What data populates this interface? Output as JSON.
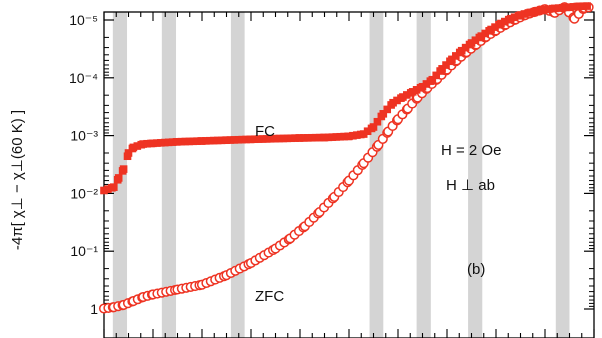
{
  "chart_data": {
    "type": "scatter",
    "panel_label": "(b)",
    "ylabel": "-4π[ χ⊥ − χ⊥(60 K) ]",
    "yscale": "log-inverted",
    "y_ticks": [
      {
        "value": 1e-05,
        "label": "10⁻⁵"
      },
      {
        "value": 0.0001,
        "label": "10⁻⁴"
      },
      {
        "value": 0.001,
        "label": "10⁻³"
      },
      {
        "value": 0.01,
        "label": "10⁻²"
      },
      {
        "value": 0.1,
        "label": "10⁻¹"
      },
      {
        "value": 1,
        "label": "1"
      }
    ],
    "x_range": [
      0,
      100
    ],
    "grid": false,
    "shaded_bands_x": [
      [
        1.8,
        4.7
      ],
      [
        11.8,
        14.7
      ],
      [
        25.9,
        28.7
      ],
      [
        54.2,
        57.0
      ],
      [
        63.8,
        66.7
      ],
      [
        74.3,
        77.2
      ],
      [
        92.2,
        95.0
      ]
    ],
    "annotations": [
      {
        "text": "FC",
        "series": "FC"
      },
      {
        "text": "ZFC",
        "series": "ZFC"
      },
      {
        "text": "H = 2 Oe",
        "color": "#111111"
      },
      {
        "text": "H ⊥ ab",
        "color": "#ee3322"
      }
    ],
    "colors": {
      "series": "#ee3322",
      "bands": "#d4d4d4",
      "axis": "#000000"
    },
    "series": [
      {
        "name": "FC",
        "marker": "filled-square",
        "x": [
          0,
          2,
          3,
          4,
          5,
          6,
          8,
          10,
          15,
          20,
          25,
          30,
          35,
          40,
          45,
          50,
          53,
          55,
          57,
          59,
          61,
          63,
          65,
          67,
          69,
          71,
          73,
          75,
          77,
          79,
          81,
          83,
          85,
          87,
          90,
          92,
          95,
          97,
          100
        ],
        "y": [
          0.0089,
          0.0078,
          0.0054,
          0.0038,
          0.002,
          0.0016,
          0.0014,
          0.00136,
          0.00128,
          0.00124,
          0.0012,
          0.00116,
          0.00113,
          0.0011,
          0.00108,
          0.00103,
          0.00094,
          0.00071,
          0.00042,
          0.00027,
          0.000215,
          0.000175,
          0.000143,
          0.000108,
          7e-05,
          4.8e-05,
          3.4e-05,
          2.5e-05,
          1.9e-05,
          1.46e-05,
          1.15e-05,
          9.5e-06,
          8.2e-06,
          7.4e-06,
          6.6e-06,
          6.3e-06,
          6e-06,
          5.8e-06,
          5.7e-06
        ]
      },
      {
        "name": "ZFC",
        "marker": "open-circle",
        "x": [
          0,
          2,
          4,
          6,
          8,
          10,
          15,
          20,
          25,
          30,
          35,
          38,
          41,
          44,
          47,
          50,
          53,
          56,
          58,
          60,
          62,
          64,
          66,
          68,
          70,
          72,
          74,
          76,
          78,
          80,
          82,
          84,
          86,
          88,
          90,
          92,
          94,
          96,
          98,
          100
        ],
        "y": [
          0.98,
          0.93,
          0.85,
          0.73,
          0.62,
          0.56,
          0.46,
          0.38,
          0.26,
          0.16,
          0.09,
          0.06,
          0.037,
          0.021,
          0.0115,
          0.006,
          0.003,
          0.00145,
          0.00085,
          0.00052,
          0.00034,
          0.00022,
          0.00015,
          0.000105,
          7.2e-05,
          5e-05,
          3.6e-05,
          2.65e-05,
          1.95e-05,
          1.52e-05,
          1.2e-05,
          9.8e-06,
          8.2e-06,
          7.2e-06,
          6.5e-06,
          7.5e-06,
          6e-06,
          9.5e-06,
          6.2e-06,
          5.8e-06
        ]
      }
    ]
  }
}
